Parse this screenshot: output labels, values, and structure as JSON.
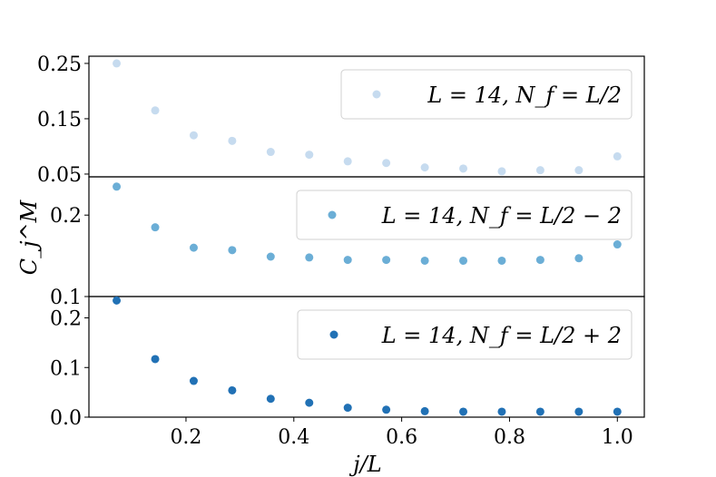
{
  "chart_data": {
    "type": "scatter",
    "xlabel": "j/L",
    "ylabel": "C_j^M",
    "xlim": [
      0.02,
      1.05
    ],
    "x": [
      0.0714,
      0.1429,
      0.2143,
      0.2857,
      0.3571,
      0.4286,
      0.5,
      0.5714,
      0.6429,
      0.7143,
      0.7857,
      0.8571,
      0.9286,
      1.0
    ],
    "xticks": [
      {
        "value": 0.2,
        "label": "0.2"
      },
      {
        "value": 0.4,
        "label": "0.4"
      },
      {
        "value": 0.6,
        "label": "0.6"
      },
      {
        "value": 0.8,
        "label": "0.8"
      },
      {
        "value": 1.0,
        "label": "1.0"
      }
    ],
    "panels": [
      {
        "legend": "L = 14, N_f = L/2",
        "color": "#c6dbef",
        "ylim": [
          0.045,
          0.263
        ],
        "yticks": [
          {
            "value": 0.05,
            "label": "0.05"
          },
          {
            "value": 0.15,
            "label": "0.15"
          },
          {
            "value": 0.25,
            "label": "0.25"
          }
        ],
        "values": [
          0.25,
          0.165,
          0.12,
          0.11,
          0.09,
          0.085,
          0.073,
          0.07,
          0.062,
          0.06,
          0.055,
          0.057,
          0.057,
          0.082
        ]
      },
      {
        "legend": "L = 14, N_f = L/2 − 2",
        "color": "#6baed6",
        "ylim": [
          0.1,
          0.247
        ],
        "yticks": [
          {
            "value": 0.1,
            "label": "0.1"
          },
          {
            "value": 0.2,
            "label": "0.2"
          }
        ],
        "values": [
          0.235,
          0.185,
          0.16,
          0.157,
          0.149,
          0.148,
          0.145,
          0.145,
          0.144,
          0.144,
          0.144,
          0.145,
          0.147,
          0.164
        ]
      },
      {
        "legend": "L = 14, N_f = L/2 + 2",
        "color": "#2171b5",
        "ylim": [
          0.0,
          0.243
        ],
        "yticks": [
          {
            "value": 0.0,
            "label": "0.0"
          },
          {
            "value": 0.1,
            "label": "0.1"
          },
          {
            "value": 0.2,
            "label": "0.2"
          }
        ],
        "values": [
          0.235,
          0.117,
          0.073,
          0.054,
          0.037,
          0.029,
          0.019,
          0.015,
          0.012,
          0.011,
          0.011,
          0.011,
          0.011,
          0.011
        ]
      }
    ]
  }
}
